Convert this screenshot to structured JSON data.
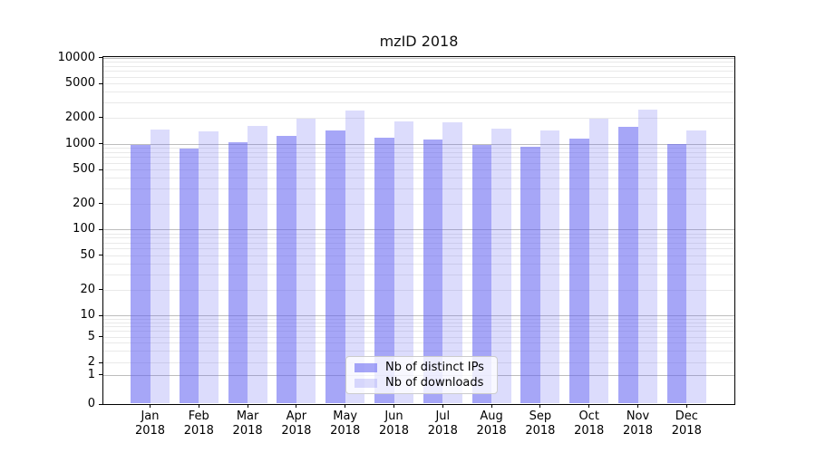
{
  "chart_data": {
    "type": "bar",
    "title": "mzID 2018",
    "year_label": "2018",
    "categories": [
      "Jan",
      "Feb",
      "Mar",
      "Apr",
      "May",
      "Jun",
      "Jul",
      "Aug",
      "Sep",
      "Oct",
      "Nov",
      "Dec"
    ],
    "series": [
      {
        "name": "Nb of distinct IPs",
        "color": "rgba(97,97,240,0.56)",
        "values": [
          960,
          870,
          1030,
          1220,
          1415,
          1180,
          1110,
          975,
          920,
          1140,
          1580,
          980
        ]
      },
      {
        "name": "Nb of downloads",
        "color": "rgba(97,97,240,0.225)",
        "values": [
          1470,
          1400,
          1590,
          1960,
          2420,
          1800,
          1770,
          1490,
          1430,
          1960,
          2480,
          1410
        ]
      }
    ],
    "yscale": "symlog",
    "ylim": [
      0,
      10000
    ],
    "yticks": [
      0,
      1,
      2,
      5,
      10,
      20,
      50,
      100,
      200,
      500,
      1000,
      2000,
      5000,
      10000
    ],
    "grid": true,
    "legend_position": "lower-center",
    "colors": {
      "grid_major": "#bdbdbd",
      "grid_minor": "#e9e9e9",
      "axis": "#000000"
    }
  }
}
